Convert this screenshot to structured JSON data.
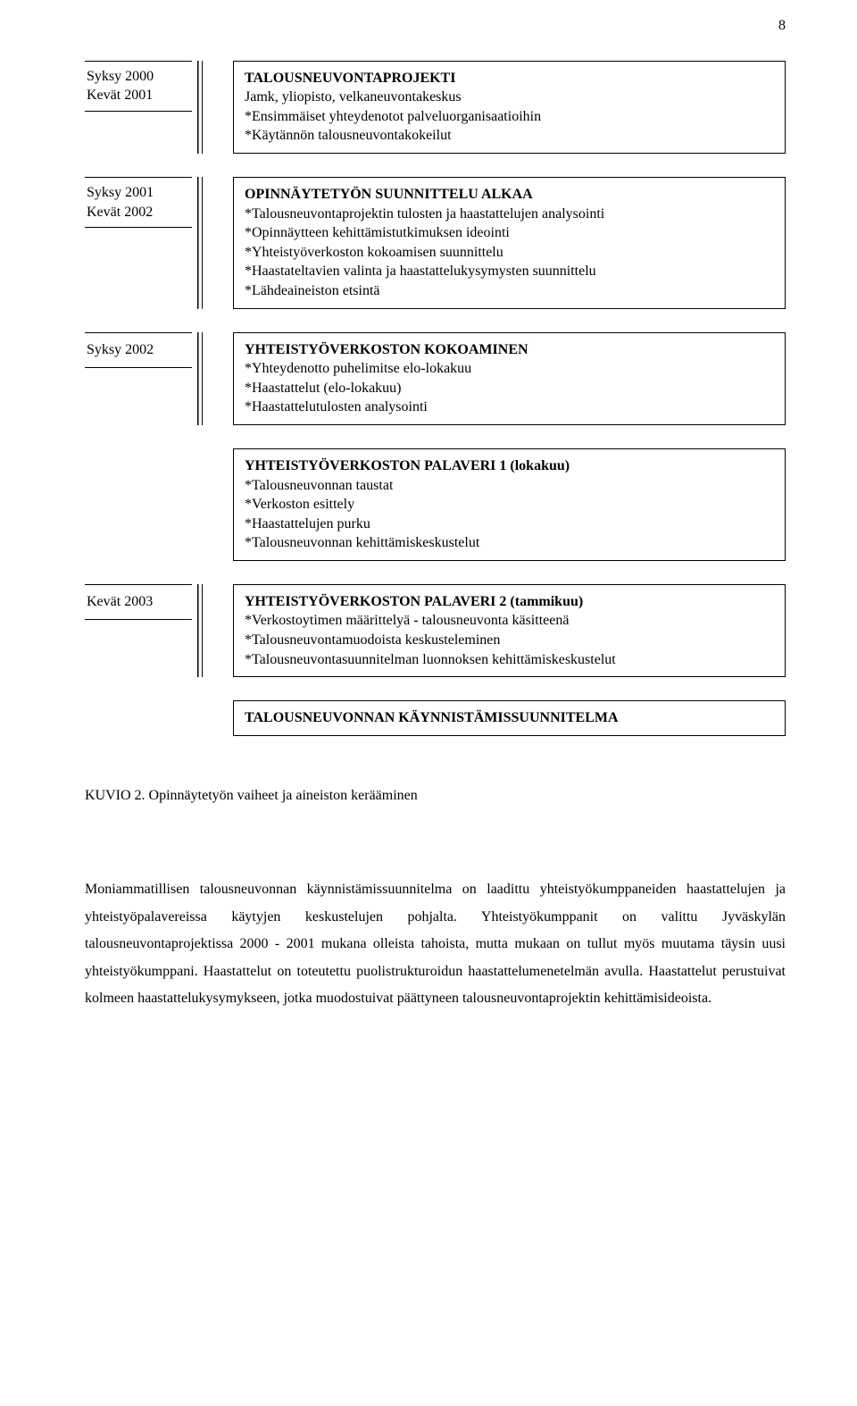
{
  "page_number": "8",
  "rows": [
    {
      "time": [
        "Syksy 2000",
        "Kevät 2001"
      ],
      "box": {
        "title": "TALOUSNEUVONTAPROJEKTI",
        "lines": [
          "Jamk, yliopisto, velkaneuvontakeskus",
          "*Ensimmäiset yhteydenotot palveluorganisaatioihin",
          "*Käytännön talousneuvontakokeilut"
        ]
      }
    },
    {
      "time": [
        "Syksy 2001",
        "Kevät 2002"
      ],
      "box": {
        "title": "OPINNÄYTETYÖN SUUNNITTELU ALKAA",
        "lines": [
          "*Talousneuvontaprojektin tulosten ja haastattelujen analysointi",
          "*Opinnäytteen kehittämistutkimuksen ideointi",
          "*Yhteistyöverkoston kokoamisen suunnittelu",
          "*Haastateltavien valinta ja haastattelukysymysten suunnittelu",
          "*Lähdeaineiston etsintä"
        ]
      }
    },
    {
      "time": [
        "Syksy 2002"
      ],
      "box": {
        "title": "YHTEISTYÖVERKOSTON KOKOAMINEN",
        "lines": [
          "*Yhteydenotto puhelimitse elo-lokakuu",
          "*Haastattelut (elo-lokakuu)",
          "*Haastattelutulosten analysointi"
        ]
      }
    },
    {
      "indent": true,
      "box": {
        "title": "YHTEISTYÖVERKOSTON PALAVERI 1 (lokakuu)",
        "lines": [
          "*Talousneuvonnan taustat",
          "*Verkoston esittely",
          "*Haastattelujen purku",
          "*Talousneuvonnan kehittämiskeskustelut"
        ]
      }
    },
    {
      "time": [
        "Kevät 2003"
      ],
      "box": {
        "title": "YHTEISTYÖVERKOSTON PALAVERI 2 (tammikuu)",
        "lines": [
          "*Verkostoytimen määrittelyä - talousneuvonta käsitteenä",
          "*Talousneuvontamuodoista keskusteleminen",
          "*Talousneuvontasuunnitelman luonnoksen kehittämiskeskustelut"
        ]
      }
    },
    {
      "indent": true,
      "box": {
        "title": "TALOUSNEUVONNAN KÄYNNISTÄMISSUUNNITELMA",
        "lines": []
      }
    }
  ],
  "figure_caption": "KUVIO 2. Opinnäytetyön vaiheet ja aineiston kerääminen",
  "paragraph": "Moniammatillisen talousneuvonnan käynnistämissuunnitelma on laadittu yhteistyökumppaneiden haastattelujen ja yhteistyöpalavereissa käytyjen keskustelujen pohjalta. Yhteistyökumppanit on valittu Jyväskylän talousneuvontaprojektissa 2000 - 2001 mukana olleista tahoista, mutta mukaan on tullut myös muutama täysin uusi yhteistyökumppani. Haastattelut on toteutettu puolistrukturoidun haastattelumenetelmän avulla. Haastattelut perustuivat kolmeen haastattelukysymykseen, jotka muodostuivat päättyneen talousneuvontaprojektin kehittämisideoista."
}
